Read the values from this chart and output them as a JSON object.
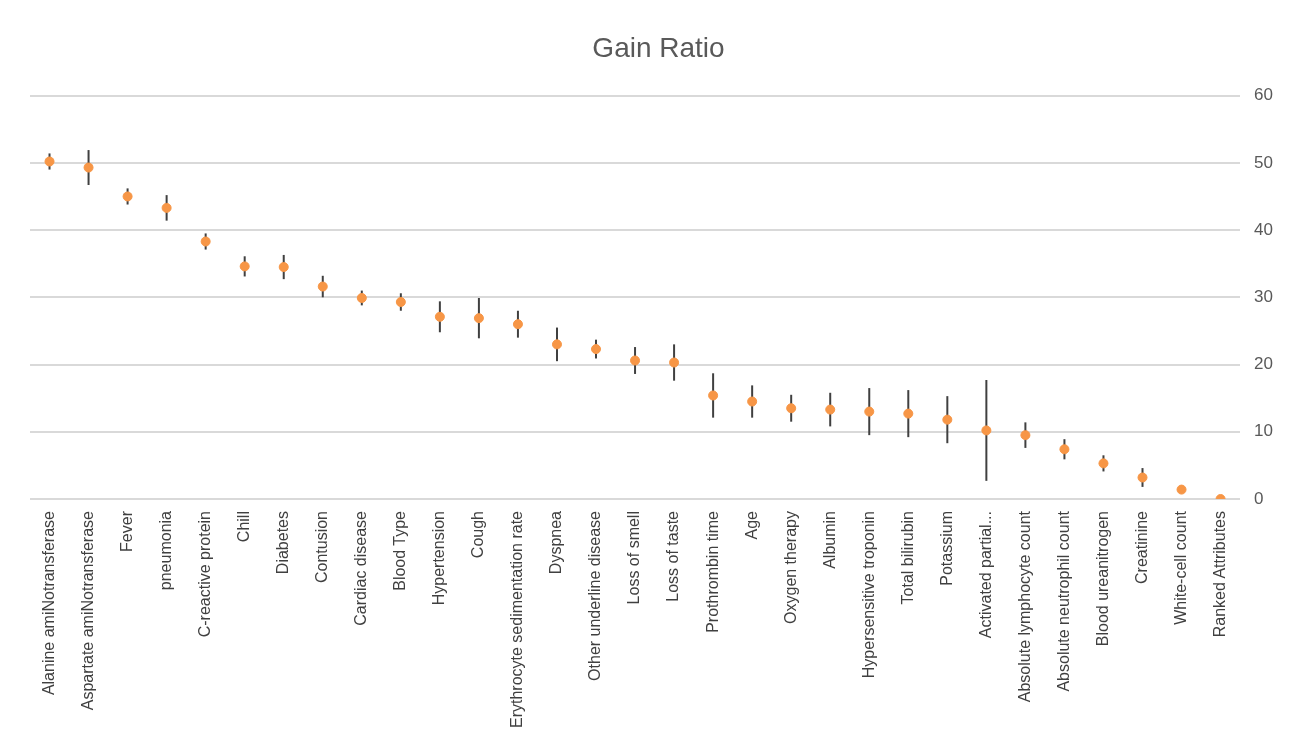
{
  "chart_data": {
    "type": "scatter",
    "title": "Gain Ratio",
    "categories": [
      "Alanine amiNotransferase",
      "Aspartate amiNotransferase",
      "Fever",
      "pneumonia",
      "C-reactive protein",
      "Chill",
      "Diabetes",
      "Contusion",
      "Cardiac disease",
      "Blood Type",
      "Hypertension",
      "Cough",
      "Erythrocyte sedimentation rate",
      "Dyspnea",
      "Other underline disease",
      "Loss of smell",
      "Loss of taste",
      "Prothrombin time",
      "Age",
      "Oxygen therapy",
      "Albumin",
      "Hypersensitive troponin",
      "Total bilirubin",
      "Potassium",
      "Activated partial...",
      "Absolute lymphocyte count",
      "Absolute neutrophil count",
      "Blood ureanitrogen",
      "Creatinine",
      "White-cell count",
      "Ranked Attributes"
    ],
    "values": [
      50.2,
      49.3,
      45,
      43.3,
      38.3,
      34.6,
      34.5,
      31.6,
      29.9,
      29.3,
      27.1,
      26.9,
      26,
      23,
      22.3,
      20.6,
      20.3,
      15.4,
      14.5,
      13.5,
      13.3,
      13,
      12.7,
      11.8,
      10.2,
      9.5,
      7.4,
      5.3,
      3.2,
      1.4,
      0
    ],
    "errors": [
      1.2,
      2.6,
      1.2,
      1.9,
      1.2,
      1.5,
      1.8,
      1.6,
      1.1,
      1.3,
      2.3,
      3,
      2,
      2.5,
      1.4,
      2,
      2.7,
      3.3,
      2.4,
      2,
      2.5,
      3.5,
      3.5,
      3.5,
      7.5,
      1.9,
      1.5,
      1.2,
      1.4,
      null,
      null
    ],
    "color": "#f79646",
    "marker": "circle",
    "ylim": [
      0,
      60
    ],
    "yticks": [
      0,
      10,
      20,
      30,
      40,
      50,
      60
    ],
    "grid": "y"
  }
}
